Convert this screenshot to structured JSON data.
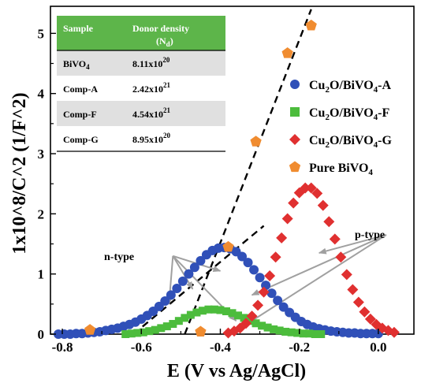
{
  "chart_data": {
    "type": "scatter",
    "xlabel": "E (V vs Ag/AgCl)",
    "ylabel": "1x10^8/C^2 (1/F^2)",
    "xlim": [
      -0.83,
      0.09
    ],
    "ylim": [
      0,
      5.45
    ],
    "xticks": [
      -0.8,
      -0.6,
      -0.4,
      -0.2,
      0.0
    ],
    "xtick_labels": [
      "-0.8",
      "-0.6",
      "-0.4",
      "-0.2",
      "0.0"
    ],
    "yticks": [
      0,
      1,
      2,
      3,
      4,
      5
    ],
    "ytick_labels": [
      "0",
      "1",
      "2",
      "3",
      "4",
      "5"
    ],
    "grid": false,
    "legend_position": "right",
    "series": [
      {
        "name": "Cu2O/BiVO4-A",
        "legend_main": "Cu",
        "legend_sub1": "2",
        "legend_mid": "O/BiVO",
        "legend_sub2": "4",
        "legend_tail": "-A",
        "marker": "circle",
        "color": "#3050b8",
        "x": [
          -0.81,
          -0.795,
          -0.78,
          -0.765,
          -0.75,
          -0.735,
          -0.72,
          -0.705,
          -0.69,
          -0.675,
          -0.66,
          -0.645,
          -0.63,
          -0.615,
          -0.6,
          -0.585,
          -0.57,
          -0.555,
          -0.54,
          -0.525,
          -0.51,
          -0.495,
          -0.48,
          -0.465,
          -0.45,
          -0.435,
          -0.42,
          -0.405,
          -0.39,
          -0.375,
          -0.36,
          -0.345,
          -0.33,
          -0.315,
          -0.3,
          -0.285,
          -0.27,
          -0.255,
          -0.24,
          -0.225,
          -0.21,
          -0.195,
          -0.18,
          -0.165,
          -0.15,
          -0.135,
          -0.12,
          -0.105,
          -0.09,
          -0.075,
          -0.06,
          -0.045,
          -0.03,
          -0.015,
          0.0
        ],
        "y": [
          0.0,
          0.0,
          0.0,
          0.01,
          0.01,
          0.02,
          0.03,
          0.04,
          0.06,
          0.08,
          0.1,
          0.13,
          0.16,
          0.2,
          0.25,
          0.31,
          0.38,
          0.46,
          0.55,
          0.65,
          0.76,
          0.88,
          1.0,
          1.11,
          1.22,
          1.32,
          1.39,
          1.43,
          1.44,
          1.42,
          1.37,
          1.29,
          1.19,
          1.07,
          0.94,
          0.81,
          0.68,
          0.56,
          0.45,
          0.36,
          0.28,
          0.21,
          0.16,
          0.12,
          0.09,
          0.07,
          0.05,
          0.04,
          0.03,
          0.02,
          0.02,
          0.01,
          0.01,
          0.01,
          0.01
        ]
      },
      {
        "name": "Cu2O/BiVO4-F",
        "legend_main": "Cu",
        "legend_sub1": "2",
        "legend_mid": "O/BiVO",
        "legend_sub2": "4",
        "legend_tail": "-F",
        "marker": "square",
        "color": "#4cbc3c",
        "x": [
          -0.64,
          -0.625,
          -0.61,
          -0.595,
          -0.58,
          -0.565,
          -0.55,
          -0.535,
          -0.52,
          -0.505,
          -0.49,
          -0.475,
          -0.46,
          -0.445,
          -0.43,
          -0.415,
          -0.4,
          -0.385,
          -0.37,
          -0.355,
          -0.34,
          -0.325,
          -0.31,
          -0.295,
          -0.28,
          -0.265,
          -0.25,
          -0.235,
          -0.22,
          -0.205,
          -0.19,
          -0.175,
          -0.16,
          -0.145
        ],
        "y": [
          0.0,
          0.01,
          0.02,
          0.03,
          0.05,
          0.07,
          0.1,
          0.13,
          0.17,
          0.22,
          0.27,
          0.32,
          0.36,
          0.39,
          0.41,
          0.41,
          0.4,
          0.38,
          0.35,
          0.31,
          0.27,
          0.22,
          0.18,
          0.14,
          0.11,
          0.08,
          0.06,
          0.04,
          0.03,
          0.02,
          0.01,
          0.01,
          0.0,
          0.0
        ]
      },
      {
        "name": "Cu2O/BiVO4-G",
        "legend_main": "Cu",
        "legend_sub1": "2",
        "legend_mid": "O/BiVO",
        "legend_sub2": "4",
        "legend_tail": "-G",
        "marker": "diamond",
        "color": "#e03030",
        "x": [
          -0.38,
          -0.365,
          -0.35,
          -0.335,
          -0.32,
          -0.305,
          -0.29,
          -0.275,
          -0.26,
          -0.245,
          -0.23,
          -0.215,
          -0.2,
          -0.185,
          -0.17,
          -0.155,
          -0.14,
          -0.125,
          -0.11,
          -0.095,
          -0.08,
          -0.065,
          -0.05,
          -0.035,
          -0.02,
          -0.005,
          0.01,
          0.025,
          0.04
        ],
        "y": [
          0.02,
          0.05,
          0.1,
          0.18,
          0.3,
          0.48,
          0.7,
          0.97,
          1.28,
          1.6,
          1.92,
          2.18,
          2.35,
          2.43,
          2.43,
          2.34,
          2.14,
          1.87,
          1.58,
          1.28,
          0.99,
          0.74,
          0.53,
          0.37,
          0.25,
          0.16,
          0.1,
          0.06,
          0.03
        ]
      },
      {
        "name": "Pure BiVO4",
        "legend_main": "Pure BiVO",
        "legend_sub1": "",
        "legend_mid": "",
        "legend_sub2": "4",
        "legend_tail": "",
        "marker": "pentagon",
        "color": "#f08c30",
        "x": [
          -0.73,
          -0.45,
          -0.38,
          -0.31,
          -0.23,
          -0.17
        ],
        "y": [
          0.07,
          0.04,
          1.45,
          3.2,
          4.67,
          5.13
        ]
      }
    ],
    "fit_lines": [
      {
        "x": [
          -0.62,
          -0.29
        ],
        "y": [
          0.0,
          1.8
        ]
      },
      {
        "x": [
          -0.49,
          -0.17
        ],
        "y": [
          0.0,
          5.4
        ]
      }
    ],
    "annotations": [
      {
        "text": "n-type",
        "label_at": [
          -0.52,
          1.3
        ],
        "targets": [
          [
            -0.4,
            1.05
          ],
          [
            -0.47,
            0.75
          ],
          [
            -0.53,
            0.5
          ],
          [
            -0.36,
            0.22
          ]
        ]
      },
      {
        "text": "p-type",
        "label_at": [
          0.02,
          1.65
        ],
        "targets": [
          [
            -0.15,
            1.35
          ],
          [
            -0.32,
            0.65
          ],
          [
            -0.33,
            0.18
          ]
        ]
      }
    ],
    "table": {
      "header": {
        "sample": "Sample",
        "donor": "Donor density",
        "donor_sub": "(N",
        "donor_sub_d": "d",
        "donor_close": ")"
      },
      "rows": [
        {
          "sample_main": "BiVO",
          "sample_sub": "4",
          "value_main": "8.11x10",
          "value_exp": "20"
        },
        {
          "sample_main": "Comp-A",
          "sample_sub": "",
          "value_main": "2.42x10",
          "value_exp": "21"
        },
        {
          "sample_main": "Comp-F",
          "sample_sub": "",
          "value_main": "4.54x10",
          "value_exp": "21"
        },
        {
          "sample_main": "Comp-G",
          "sample_sub": "",
          "value_main": "8.95x10",
          "value_exp": "20"
        }
      ],
      "header_color": "#5db54a",
      "stripe_color": "#e0e0e0"
    }
  }
}
